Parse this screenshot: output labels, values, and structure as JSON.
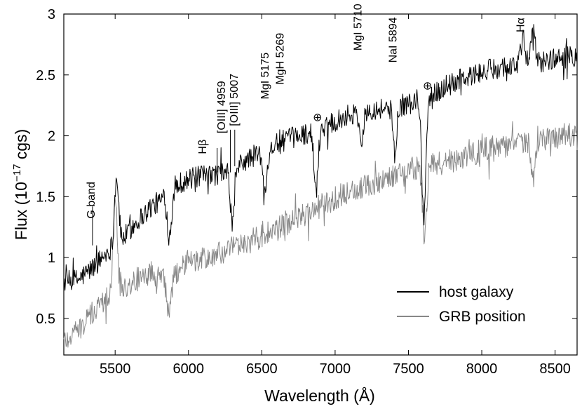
{
  "chart_data": {
    "type": "line",
    "title": "",
    "xlabel": "Wavelength (Å)",
    "ylabel": "Flux (10^-17 cgs)",
    "xlim": [
      5150,
      8650
    ],
    "ylim": [
      0.2,
      3.0
    ],
    "xticks": [
      5500,
      6000,
      6500,
      7000,
      7500,
      8000,
      8500
    ],
    "yticks": [
      0.5,
      1,
      1.5,
      2,
      2.5,
      3
    ],
    "ytick_labels": [
      "0.5",
      "1",
      "1.5",
      "2",
      "2.5",
      "3"
    ],
    "grid": false,
    "legend_position": "bottom-right",
    "series": [
      {
        "name": "host galaxy",
        "color": "#000000",
        "points": [
          [
            5150,
            0.8
          ],
          [
            5250,
            0.82
          ],
          [
            5350,
            0.92
          ],
          [
            5450,
            1.05
          ],
          [
            5550,
            1.15
          ],
          [
            5650,
            1.3
          ],
          [
            5750,
            1.42
          ],
          [
            5850,
            1.5
          ],
          [
            5950,
            1.62
          ],
          [
            6050,
            1.66
          ],
          [
            6150,
            1.67
          ],
          [
            6250,
            1.7
          ],
          [
            6350,
            1.76
          ],
          [
            6450,
            1.84
          ],
          [
            6550,
            1.9
          ],
          [
            6650,
            1.96
          ],
          [
            6750,
            2.0
          ],
          [
            6850,
            2.04
          ],
          [
            6950,
            2.1
          ],
          [
            7050,
            2.15
          ],
          [
            7150,
            2.2
          ],
          [
            7250,
            2.22
          ],
          [
            7350,
            2.23
          ],
          [
            7450,
            2.25
          ],
          [
            7550,
            2.28
          ],
          [
            7650,
            2.32
          ],
          [
            7750,
            2.4
          ],
          [
            7850,
            2.46
          ],
          [
            7950,
            2.5
          ],
          [
            8050,
            2.54
          ],
          [
            8150,
            2.57
          ],
          [
            8250,
            2.58
          ],
          [
            8350,
            2.6
          ],
          [
            8450,
            2.62
          ],
          [
            8550,
            2.64
          ],
          [
            8650,
            2.66
          ]
        ],
        "features": [
          {
            "x": 5510,
            "depth": -0.55
          },
          {
            "x": 5870,
            "depth": 0.35
          },
          {
            "x": 6300,
            "depth": 0.45
          },
          {
            "x": 6520,
            "depth": 0.35
          },
          {
            "x": 6870,
            "depth": 0.5
          },
          {
            "x": 7180,
            "depth": 0.25
          },
          {
            "x": 7410,
            "depth": 0.4
          },
          {
            "x": 7605,
            "depth": 0.95
          },
          {
            "x": 8280,
            "depth": -0.2
          },
          {
            "x": 8350,
            "depth": -0.25
          }
        ]
      },
      {
        "name": "GRB position",
        "color": "#888888",
        "points": [
          [
            5150,
            0.32
          ],
          [
            5250,
            0.4
          ],
          [
            5350,
            0.55
          ],
          [
            5450,
            0.68
          ],
          [
            5550,
            0.75
          ],
          [
            5650,
            0.82
          ],
          [
            5750,
            0.88
          ],
          [
            5850,
            0.8
          ],
          [
            5950,
            0.92
          ],
          [
            6050,
            0.97
          ],
          [
            6150,
            1.0
          ],
          [
            6250,
            1.05
          ],
          [
            6350,
            1.1
          ],
          [
            6450,
            1.15
          ],
          [
            6550,
            1.2
          ],
          [
            6650,
            1.26
          ],
          [
            6750,
            1.32
          ],
          [
            6850,
            1.4
          ],
          [
            6950,
            1.45
          ],
          [
            7050,
            1.52
          ],
          [
            7150,
            1.56
          ],
          [
            7250,
            1.6
          ],
          [
            7350,
            1.65
          ],
          [
            7450,
            1.7
          ],
          [
            7550,
            1.74
          ],
          [
            7650,
            1.76
          ],
          [
            7750,
            1.78
          ],
          [
            7850,
            1.82
          ],
          [
            7950,
            1.86
          ],
          [
            8050,
            1.9
          ],
          [
            8150,
            1.92
          ],
          [
            8250,
            1.94
          ],
          [
            8350,
            1.96
          ],
          [
            8450,
            1.98
          ],
          [
            8550,
            2.0
          ],
          [
            8650,
            2.02
          ]
        ],
        "features": [
          {
            "x": 5500,
            "depth": -0.85
          },
          {
            "x": 5870,
            "depth": 0.3
          },
          {
            "x": 7610,
            "depth": 0.6
          },
          {
            "x": 8350,
            "depth": 0.35
          }
        ]
      }
    ],
    "annotations": [
      {
        "text": "G band",
        "x": 5360,
        "y": 1.32
      },
      {
        "text": "Hβ",
        "x": 6120,
        "y": 1.85
      },
      {
        "text": "[OIII] 4959",
        "x": 6250,
        "y": 2.02
      },
      {
        "text": "[OIII] 5007",
        "x": 6335,
        "y": 2.08
      },
      {
        "text": "MgI 5175",
        "x": 6545,
        "y": 2.3
      },
      {
        "text": "MgH 5269",
        "x": 6650,
        "y": 2.42
      },
      {
        "text": "⊕",
        "x": 6880,
        "y": 2.12
      },
      {
        "text": "MgI 5710",
        "x": 7180,
        "y": 2.7
      },
      {
        "text": "NaI 5894",
        "x": 7420,
        "y": 2.6
      },
      {
        "text": "⊕",
        "x": 7630,
        "y": 2.38
      },
      {
        "text": "Hα",
        "x": 8290,
        "y": 2.85
      }
    ],
    "legend": [
      {
        "label": "host galaxy",
        "color": "#000000"
      },
      {
        "label": "GRB position",
        "color": "#888888"
      }
    ]
  }
}
